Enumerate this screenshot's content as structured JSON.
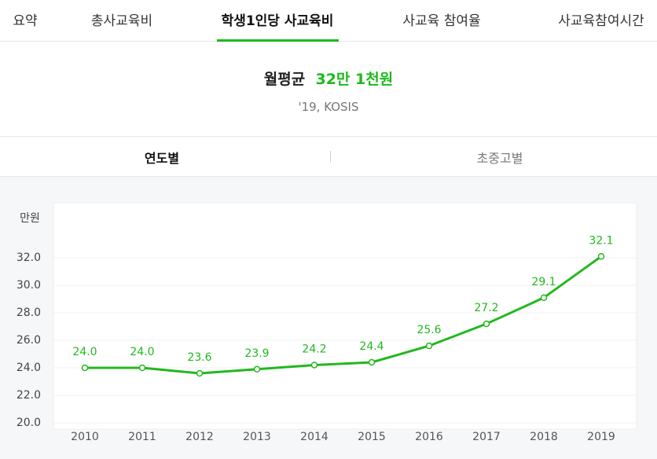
{
  "tabs": [
    "요약",
    "총사교육비",
    "학생1인당 사교육비",
    "사교육 참여율",
    "사교육참여시간"
  ],
  "active_tab": 2,
  "summary": {
    "label": "월평균",
    "value": "32만 1천원",
    "source": "'19, KOSIS"
  },
  "sub_tabs": [
    "연도별",
    "초중고별"
  ],
  "active_sub_tab": 0,
  "chart_data": {
    "type": "line",
    "y_unit": "만원",
    "categories": [
      "2010",
      "2011",
      "2012",
      "2013",
      "2014",
      "2015",
      "2016",
      "2017",
      "2018",
      "2019"
    ],
    "values": [
      24,
      24,
      23.6,
      23.9,
      24.2,
      24.4,
      25.6,
      27.2,
      29.1,
      32.1
    ],
    "value_labels": [
      "24.0",
      "24.0",
      "23.6",
      "23.9",
      "24.2",
      "24.4",
      "25.6",
      "27.2",
      "29.1",
      "32.1"
    ],
    "color": "#22b81e",
    "ylim": [
      20,
      36
    ],
    "yticks": [
      {
        "value": 20,
        "label": "20.0"
      },
      {
        "value": 22,
        "label": "22.0"
      },
      {
        "value": 24,
        "label": "24.0"
      },
      {
        "value": 26,
        "label": "26.0"
      },
      {
        "value": 28,
        "label": "28.0"
      },
      {
        "value": 30,
        "label": "30.0"
      },
      {
        "value": 32,
        "label": "32.0"
      }
    ],
    "grid": true
  }
}
